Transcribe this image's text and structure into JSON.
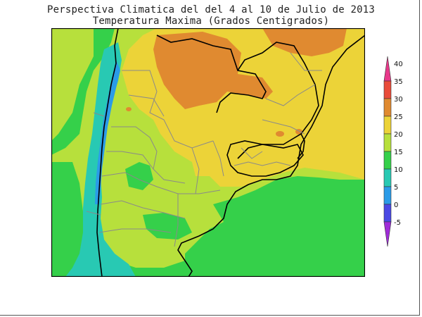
{
  "header": {
    "title": "Perspectiva Climatica del del 4 al 10 de Julio de 2013",
    "subtitle": "Temperatura Maxima (Grados Centigrados)"
  },
  "map": {
    "variable": "Temperatura Maxima",
    "units": "Grados Centigrados",
    "region": "Argentina, Chile, Uruguay, Paraguay, southern Brazil"
  },
  "legend": {
    "ticks": [
      "40",
      "35",
      "30",
      "25",
      "20",
      "15",
      "10",
      "5",
      "0",
      "-5"
    ],
    "bins": [
      {
        "color": "#e8388a"
      },
      {
        "color": "#e94c3a"
      },
      {
        "color": "#e08a30"
      },
      {
        "color": "#ecd338"
      },
      {
        "color": "#b7e03c"
      },
      {
        "color": "#35d04a"
      },
      {
        "color": "#28c9b3"
      },
      {
        "color": "#2a9be8"
      },
      {
        "color": "#4a48e4"
      },
      {
        "color": "#a02cd8"
      }
    ]
  }
}
